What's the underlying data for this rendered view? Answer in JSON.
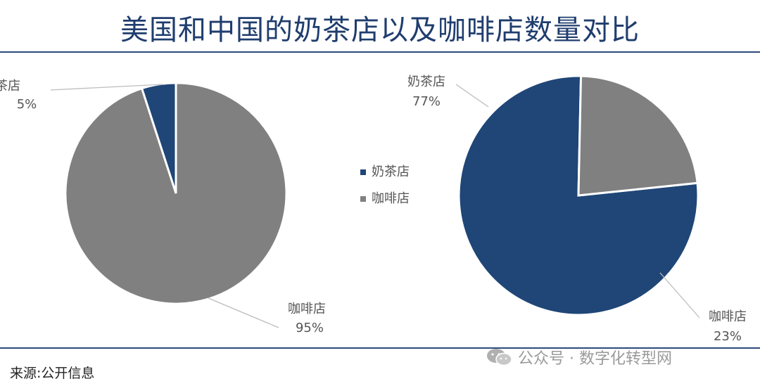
{
  "title": "美国和中国的奶茶店以及咖啡店数量对比",
  "source": "来源:公开信息",
  "watermark": "公众号 · 数字化转型网",
  "colors": {
    "milk_tea": "#1f4677",
    "coffee": "#808080",
    "title": "#1f3d6e",
    "rule": "#2d4a7a"
  },
  "legend": [
    {
      "label": "奶茶店",
      "color": "#1f4677"
    },
    {
      "label": "咖啡店",
      "color": "#808080"
    }
  ],
  "chart_data": [
    {
      "type": "pie",
      "title": "",
      "slices": [
        {
          "name": "奶茶店",
          "value": 5,
          "label": "5%"
        },
        {
          "name": "咖啡店",
          "value": 95,
          "label": "95%"
        }
      ]
    },
    {
      "type": "pie",
      "title": "",
      "slices": [
        {
          "name": "奶茶店",
          "value": 77,
          "label": "77%"
        },
        {
          "name": "咖啡店",
          "value": 23,
          "label": "23%"
        }
      ]
    }
  ]
}
